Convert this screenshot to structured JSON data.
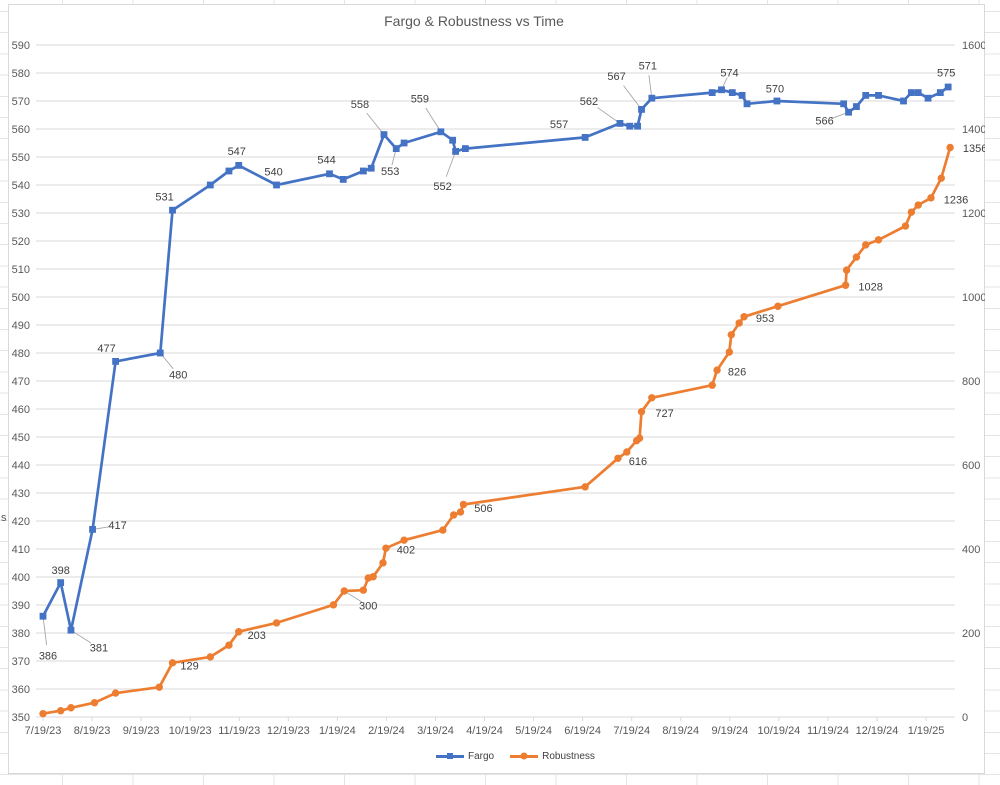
{
  "left_axis_title_fragment": "s",
  "chart_data": {
    "type": "line",
    "title": "Fargo & Robustness vs Time",
    "legend": {
      "position": "bottom",
      "entries": [
        {
          "name": "Fargo",
          "color": "#4472C4",
          "marker": "square"
        },
        {
          "name": "Robustness",
          "color": "#ED7D31",
          "marker": "circle"
        }
      ]
    },
    "colors": {
      "fargo": "#4472C4",
      "robustness": "#ED7D31",
      "gridline": "#D9D9D9",
      "axis_text": "#595959",
      "label_text": "#404040",
      "leader": "#A6A6A6",
      "chart_border": "#D9D9D9",
      "sheet_line": "#E4E4E4"
    },
    "x_axis": {
      "unit_note": "x stored as months after 7/19/23, estimated from plot positions",
      "tick_labels": [
        "7/19/23",
        "8/19/23",
        "9/19/23",
        "10/19/23",
        "11/19/23",
        "12/19/23",
        "1/19/24",
        "2/19/24",
        "3/19/24",
        "4/19/24",
        "5/19/24",
        "6/19/24",
        "7/19/24",
        "8/19/24",
        "9/19/24",
        "10/19/24",
        "11/19/24",
        "12/19/24",
        "1/19/25"
      ]
    },
    "y_axis_left": {
      "series": "Fargo",
      "min": 350,
      "max": 590,
      "step": 10,
      "ylim": [
        350,
        590
      ],
      "ticks": [
        "350",
        "360",
        "370",
        "380",
        "390",
        "400",
        "410",
        "420",
        "430",
        "440",
        "450",
        "460",
        "470",
        "480",
        "490",
        "500",
        "510",
        "520",
        "530",
        "540",
        "550",
        "560",
        "570",
        "580",
        "590"
      ]
    },
    "y_axis_right": {
      "series": "Robustness",
      "min": 0,
      "max": 1600,
      "step": 200,
      "ylim": [
        0,
        1600
      ],
      "ticks": [
        "0",
        "200",
        "400",
        "600",
        "800",
        "1000",
        "1200",
        "1400",
        "1600"
      ]
    },
    "grid": "horizontal-major-only",
    "series": [
      {
        "name": "Fargo",
        "axis": "left",
        "color": "#4472C4",
        "marker": "square",
        "points": [
          {
            "m": 0.0,
            "v": 386,
            "label": "386",
            "dx": 5,
            "dy": 40,
            "leader": true
          },
          {
            "m": 0.36,
            "v": 398,
            "label": "398",
            "dx": 0,
            "dy": -12
          },
          {
            "m": 0.57,
            "v": 381,
            "label": "381",
            "dx": 28,
            "dy": 18,
            "leader": true
          },
          {
            "m": 1.01,
            "v": 417,
            "label": "417",
            "dx": 25,
            "dy": -4,
            "leader": true
          },
          {
            "m": 1.48,
            "v": 477,
            "label": "477",
            "dx": -9,
            "dy": -13
          },
          {
            "m": 2.39,
            "v": 480,
            "label": "480",
            "dx": 18,
            "dy": 22,
            "leader": true
          },
          {
            "m": 2.64,
            "v": 531,
            "label": "531",
            "dx": -8,
            "dy": -13
          },
          {
            "m": 3.41,
            "v": 540
          },
          {
            "m": 3.79,
            "v": 545
          },
          {
            "m": 3.99,
            "v": 547,
            "label": "547",
            "dx": -2,
            "dy": -14
          },
          {
            "m": 4.76,
            "v": 540,
            "label": "540",
            "dx": -3,
            "dy": -13
          },
          {
            "m": 5.84,
            "v": 544,
            "label": "544",
            "dx": -3,
            "dy": -14
          },
          {
            "m": 6.12,
            "v": 542
          },
          {
            "m": 6.53,
            "v": 545
          },
          {
            "m": 6.69,
            "v": 546
          },
          {
            "m": 6.95,
            "v": 558,
            "label": "558",
            "dx": -24,
            "dy": -30,
            "leader": true
          },
          {
            "m": 7.2,
            "v": 553,
            "label": "553",
            "dx": -6,
            "dy": 23,
            "leader": true
          },
          {
            "m": 7.36,
            "v": 555
          },
          {
            "m": 8.11,
            "v": 559,
            "label": "559",
            "dx": -21,
            "dy": -33,
            "leader": true
          },
          {
            "m": 8.35,
            "v": 556
          },
          {
            "m": 8.41,
            "v": 552,
            "label": "552",
            "dx": -13,
            "dy": 35,
            "leader": true
          },
          {
            "m": 8.61,
            "v": 553
          },
          {
            "m": 11.05,
            "v": 557,
            "label": "557",
            "dx": -26,
            "dy": -13
          },
          {
            "m": 11.76,
            "v": 562,
            "label": "562",
            "dx": -31,
            "dy": -22,
            "leader": true
          },
          {
            "m": 11.96,
            "v": 561
          },
          {
            "m": 12.12,
            "v": 561
          },
          {
            "m": 12.2,
            "v": 567,
            "label": "567",
            "dx": -25,
            "dy": -33,
            "leader": true
          },
          {
            "m": 12.41,
            "v": 571,
            "label": "571",
            "dx": -4,
            "dy": -32,
            "leader": true
          },
          {
            "m": 13.64,
            "v": 573
          },
          {
            "m": 13.83,
            "v": 574,
            "label": "574",
            "dx": 8,
            "dy": -17,
            "leader": true
          },
          {
            "m": 14.05,
            "v": 573
          },
          {
            "m": 14.25,
            "v": 572
          },
          {
            "m": 14.35,
            "v": 569
          },
          {
            "m": 14.96,
            "v": 570,
            "label": "570",
            "dx": -2,
            "dy": -12
          },
          {
            "m": 16.32,
            "v": 569
          },
          {
            "m": 16.42,
            "v": 566,
            "label": "566",
            "dx": -24,
            "dy": 9,
            "leader": true
          },
          {
            "m": 16.58,
            "v": 568
          },
          {
            "m": 16.77,
            "v": 572
          },
          {
            "m": 17.03,
            "v": 572
          },
          {
            "m": 17.54,
            "v": 570
          },
          {
            "m": 17.7,
            "v": 573
          },
          {
            "m": 17.84,
            "v": 573
          },
          {
            "m": 18.04,
            "v": 571
          },
          {
            "m": 18.29,
            "v": 573
          },
          {
            "m": 18.45,
            "v": 575,
            "label": "575",
            "dx": -2,
            "dy": -14
          }
        ]
      },
      {
        "name": "Robustness",
        "axis": "right",
        "color": "#ED7D31",
        "marker": "circle",
        "points": [
          {
            "m": 0.0,
            "v": 8
          },
          {
            "m": 0.36,
            "v": 15
          },
          {
            "m": 0.57,
            "v": 22
          },
          {
            "m": 1.05,
            "v": 34
          },
          {
            "m": 1.48,
            "v": 57
          },
          {
            "m": 2.37,
            "v": 71
          },
          {
            "m": 2.64,
            "v": 129,
            "label": "129",
            "dx": 17,
            "dy": 3
          },
          {
            "m": 3.41,
            "v": 143
          },
          {
            "m": 3.79,
            "v": 171
          },
          {
            "m": 3.99,
            "v": 203,
            "label": "203",
            "dx": 18,
            "dy": 4
          },
          {
            "m": 4.76,
            "v": 224
          },
          {
            "m": 5.92,
            "v": 267
          },
          {
            "m": 6.14,
            "v": 300,
            "label": "300",
            "dx": 24,
            "dy": 15,
            "leader": true
          },
          {
            "m": 6.53,
            "v": 302
          },
          {
            "m": 6.63,
            "v": 331
          },
          {
            "m": 6.73,
            "v": 334
          },
          {
            "m": 6.93,
            "v": 367
          },
          {
            "m": 6.99,
            "v": 402,
            "label": "402",
            "dx": 20,
            "dy": 2
          },
          {
            "m": 7.36,
            "v": 421
          },
          {
            "m": 8.15,
            "v": 445
          },
          {
            "m": 8.37,
            "v": 481
          },
          {
            "m": 8.51,
            "v": 488
          },
          {
            "m": 8.57,
            "v": 506,
            "label": "506",
            "dx": 20,
            "dy": 4
          },
          {
            "m": 11.05,
            "v": 548
          },
          {
            "m": 11.72,
            "v": 616,
            "label": "616",
            "dx": 20,
            "dy": 3
          },
          {
            "m": 11.9,
            "v": 631
          },
          {
            "m": 12.1,
            "v": 658
          },
          {
            "m": 12.16,
            "v": 664
          },
          {
            "m": 12.2,
            "v": 727,
            "label": "727",
            "dx": 23,
            "dy": 2
          },
          {
            "m": 12.41,
            "v": 760
          },
          {
            "m": 13.64,
            "v": 790
          },
          {
            "m": 13.74,
            "v": 826,
            "label": "826",
            "dx": 20,
            "dy": 2
          },
          {
            "m": 13.99,
            "v": 869
          },
          {
            "m": 14.03,
            "v": 910
          },
          {
            "m": 14.19,
            "v": 938
          },
          {
            "m": 14.29,
            "v": 953,
            "label": "953",
            "dx": 21,
            "dy": 2
          },
          {
            "m": 14.98,
            "v": 978
          },
          {
            "m": 16.36,
            "v": 1028,
            "label": "1028",
            "dx": 25,
            "dy": 2
          },
          {
            "m": 16.38,
            "v": 1064
          },
          {
            "m": 16.58,
            "v": 1095
          },
          {
            "m": 16.77,
            "v": 1124
          },
          {
            "m": 17.03,
            "v": 1136
          },
          {
            "m": 17.58,
            "v": 1169
          },
          {
            "m": 17.7,
            "v": 1202
          },
          {
            "m": 17.84,
            "v": 1219
          },
          {
            "m": 18.1,
            "v": 1236,
            "label": "1236",
            "dx": 25,
            "dy": 2
          },
          {
            "m": 18.31,
            "v": 1283
          },
          {
            "m": 18.49,
            "v": 1356,
            "label": "1356",
            "dx": 25,
            "dy": 1
          }
        ]
      }
    ]
  }
}
